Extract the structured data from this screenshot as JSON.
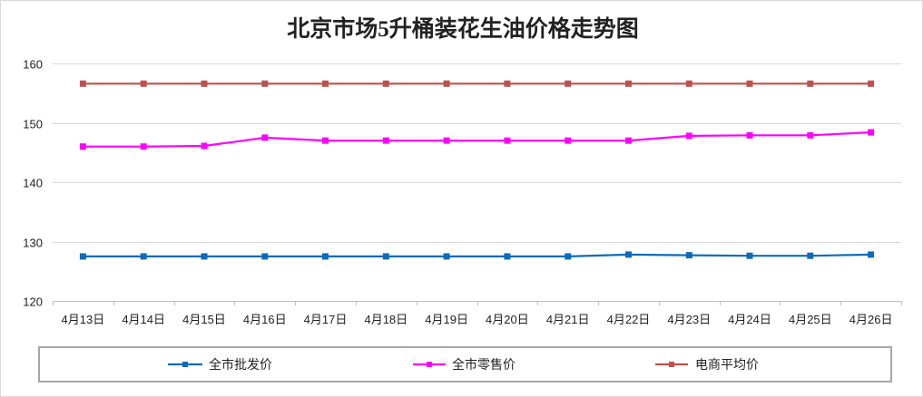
{
  "chart_data": {
    "type": "line",
    "title": "北京市场5升桶装花生油价格走势图",
    "xlabel": "",
    "ylabel": "",
    "categories": [
      "4月13日",
      "4月14日",
      "4月15日",
      "4月16日",
      "4月17日",
      "4月18日",
      "4月19日",
      "4月20日",
      "4月21日",
      "4月22日",
      "4月23日",
      "4月24日",
      "4月25日",
      "4月26日"
    ],
    "ylim": [
      120,
      160
    ],
    "yticks": [
      120,
      130,
      140,
      150,
      160
    ],
    "grid": true,
    "legend": "bottom",
    "series": [
      {
        "name": "全市批发价",
        "color": "#0E6BB8",
        "values": [
          127.5,
          127.5,
          127.5,
          127.5,
          127.5,
          127.5,
          127.5,
          127.5,
          127.5,
          127.8,
          127.7,
          127.6,
          127.6,
          127.8
        ]
      },
      {
        "name": "全市零售价",
        "color": "#FF00FF",
        "values": [
          146.0,
          146.0,
          146.1,
          147.5,
          147.0,
          147.0,
          147.0,
          147.0,
          147.0,
          147.0,
          147.8,
          147.9,
          147.9,
          148.4
        ]
      },
      {
        "name": "电商平均价",
        "color": "#C0504D",
        "values": [
          156.6,
          156.6,
          156.6,
          156.6,
          156.6,
          156.6,
          156.6,
          156.6,
          156.6,
          156.6,
          156.6,
          156.6,
          156.6,
          156.6
        ]
      }
    ]
  }
}
